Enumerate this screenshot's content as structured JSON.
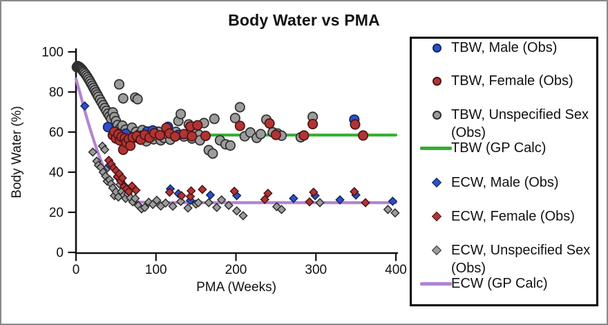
{
  "figure": {
    "title": "Body Water vs PMA"
  },
  "chart_data": {
    "type": "scatter",
    "title": "Body Water vs PMA",
    "xlabel": "PMA (Weeks)",
    "ylabel": "Body Water (%)",
    "xlim": [
      0,
      400
    ],
    "ylim": [
      0,
      100
    ],
    "x_ticks": [
      0,
      100,
      200,
      300,
      400
    ],
    "y_ticks": [
      0,
      20,
      40,
      60,
      80,
      100
    ],
    "grid": false,
    "legend_position": "right",
    "tbw_plateau_pct": 58.5,
    "ecw_plateau_pct": 24.8,
    "series": [
      {
        "name": "TBW, Male (Obs)",
        "type": "scatter",
        "marker": "circle",
        "color": "#2b50c8",
        "edge": "#13265e",
        "points": [
          [
            40,
            62.5
          ],
          [
            62,
            59.2
          ],
          [
            82,
            58.2
          ],
          [
            89,
            60.3
          ],
          [
            96,
            60.8
          ],
          [
            115,
            62.6
          ],
          [
            128,
            58.6
          ],
          [
            348,
            66.2
          ]
        ]
      },
      {
        "name": "TBW, Female (Obs)",
        "type": "scatter",
        "marker": "circle",
        "color": "#b13434",
        "edge": "#4f1414",
        "points": [
          [
            46,
            58.5
          ],
          [
            48,
            60.2
          ],
          [
            50,
            56.8
          ],
          [
            53,
            58.8
          ],
          [
            55,
            55.8
          ],
          [
            57,
            57.6
          ],
          [
            59,
            51.2
          ],
          [
            61,
            56.9
          ],
          [
            63,
            54.8
          ],
          [
            66,
            56.5
          ],
          [
            68,
            53.2
          ],
          [
            71,
            57.4
          ],
          [
            76,
            58.0
          ],
          [
            81,
            56.2
          ],
          [
            86,
            58.6
          ],
          [
            92,
            57.2
          ],
          [
            98,
            59.4
          ],
          [
            105,
            58.4
          ],
          [
            113,
            62.1
          ],
          [
            117,
            59.3
          ],
          [
            124,
            57.8
          ],
          [
            135,
            59.0
          ],
          [
            143,
            62.8
          ],
          [
            145,
            57.9
          ],
          [
            152,
            63.4
          ],
          [
            162,
            58.1
          ],
          [
            205,
            63.1
          ],
          [
            242,
            64.3
          ],
          [
            250,
            58.6
          ],
          [
            285,
            58.3
          ],
          [
            296,
            64.0
          ],
          [
            349,
            63.8
          ],
          [
            359,
            58.3
          ]
        ]
      },
      {
        "name": "TBW, Unspecified Sex (Obs)",
        "type": "scatter",
        "marker": "circle",
        "color": "#9c9c9c",
        "edge": "#2e2e2e",
        "points": [
          [
            1,
            92.4
          ],
          [
            2,
            92.9
          ],
          [
            3,
            92.7
          ],
          [
            4,
            92.5
          ],
          [
            5,
            92.2
          ],
          [
            6,
            91.8
          ],
          [
            7,
            91.4
          ],
          [
            8,
            90.9
          ],
          [
            9,
            90.4
          ],
          [
            10,
            89.8
          ],
          [
            11.5,
            89.1
          ],
          [
            13,
            88.2
          ],
          [
            14.5,
            87.3
          ],
          [
            16,
            86.3
          ],
          [
            17.5,
            85.3
          ],
          [
            19,
            84.2
          ],
          [
            20.5,
            83.1
          ],
          [
            22,
            82.0
          ],
          [
            23.5,
            80.9
          ],
          [
            25,
            79.8
          ],
          [
            26.5,
            78.7
          ],
          [
            28,
            77.6
          ],
          [
            30,
            76.2
          ],
          [
            32,
            74.8
          ],
          [
            34,
            73.4
          ],
          [
            36,
            72.0
          ],
          [
            38,
            70.6
          ],
          [
            40,
            69.2
          ],
          [
            42,
            67.9
          ],
          [
            44,
            66.6
          ],
          [
            54,
            83.8
          ],
          [
            59,
            76.8
          ],
          [
            74,
            77.2
          ],
          [
            77,
            76.4
          ],
          [
            46,
            69.8
          ],
          [
            48,
            67.5
          ],
          [
            50,
            65.5
          ],
          [
            52,
            63.5
          ],
          [
            55,
            61.8
          ],
          [
            57,
            60.2
          ],
          [
            58,
            63.2
          ],
          [
            60,
            58.4
          ],
          [
            62,
            61.2
          ],
          [
            64,
            57.2
          ],
          [
            66,
            59.6
          ],
          [
            68,
            55.8
          ],
          [
            70,
            62.2
          ],
          [
            73,
            58.3
          ],
          [
            75,
            60.1
          ],
          [
            78,
            56.9
          ],
          [
            80,
            59.2
          ],
          [
            83,
            61.0
          ],
          [
            86,
            58.0
          ],
          [
            88,
            55.4
          ],
          [
            91,
            57.3
          ],
          [
            94,
            59.1
          ],
          [
            97,
            56.4
          ],
          [
            100,
            58.3
          ],
          [
            103,
            60.2
          ],
          [
            106,
            55.9
          ],
          [
            110,
            57.1
          ],
          [
            114,
            59.0
          ],
          [
            118,
            56.2
          ],
          [
            125,
            60.1
          ],
          [
            128,
            65.5
          ],
          [
            131,
            69.0
          ],
          [
            135,
            57.8
          ],
          [
            141,
            63.8
          ],
          [
            145,
            56.8
          ],
          [
            150,
            59.2
          ],
          [
            154,
            58.6
          ],
          [
            155,
            55.9
          ],
          [
            160,
            64.5
          ],
          [
            166,
            51.0
          ],
          [
            171,
            49.3
          ],
          [
            173,
            66.6
          ],
          [
            180,
            55.9
          ],
          [
            187,
            53.9
          ],
          [
            193,
            53.3
          ],
          [
            199,
            67.0
          ],
          [
            205,
            72.4
          ],
          [
            211,
            57.9
          ],
          [
            218,
            59.8
          ],
          [
            226,
            57.1
          ],
          [
            231,
            59.0
          ],
          [
            238,
            66.2
          ],
          [
            246,
            59.9
          ],
          [
            252,
            59.3
          ],
          [
            257,
            58.2
          ],
          [
            281,
            57.4
          ],
          [
            296,
            67.6
          ]
        ]
      },
      {
        "name": "TBW (GP Calc)",
        "type": "line",
        "marker": "line",
        "color": "#2fae2f",
        "edge": "",
        "points": [
          [
            70,
            59.7
          ],
          [
            85,
            58.9
          ],
          [
            100,
            58.5
          ],
          [
            150,
            58.5
          ],
          [
            250,
            58.5
          ],
          [
            400,
            58.5
          ]
        ]
      },
      {
        "name": "ECW, Male (Obs)",
        "type": "scatter",
        "marker": "diamond",
        "color": "#2b50c8",
        "edge": "#13265e",
        "points": [
          [
            11,
            73.0
          ],
          [
            42,
            43.5
          ],
          [
            52,
            37.5
          ],
          [
            61,
            33.0
          ],
          [
            118,
            31.7
          ],
          [
            128,
            29.3
          ],
          [
            143,
            25.9
          ],
          [
            168,
            28.6
          ],
          [
            201,
            28.3
          ],
          [
            272,
            26.9
          ],
          [
            299,
            28.3
          ],
          [
            330,
            26.2
          ],
          [
            350,
            28.6
          ],
          [
            396,
            25.5
          ]
        ]
      },
      {
        "name": "ECW, Female (Obs)",
        "type": "scatter",
        "marker": "diamond",
        "color": "#b13434",
        "edge": "#4f1414",
        "points": [
          [
            41,
            45.9
          ],
          [
            44,
            44.0
          ],
          [
            47,
            42.1
          ],
          [
            50,
            40.7
          ],
          [
            52,
            37.9
          ],
          [
            54,
            39.2
          ],
          [
            56,
            35.5
          ],
          [
            58,
            37.1
          ],
          [
            60,
            32.8
          ],
          [
            63,
            31.7
          ],
          [
            66,
            30.3
          ],
          [
            70,
            33.1
          ],
          [
            75,
            31.0
          ],
          [
            117,
            30.0
          ],
          [
            132,
            28.3
          ],
          [
            143,
            27.9
          ],
          [
            144,
            30.7
          ],
          [
            158,
            31.4
          ],
          [
            198,
            30.5
          ],
          [
            236,
            26.4
          ],
          [
            240,
            29.5
          ],
          [
            292,
            25.2
          ],
          [
            297,
            30.0
          ],
          [
            348,
            30.3
          ],
          [
            362,
            24.8
          ]
        ]
      },
      {
        "name": "ECW, Unspecified Sex (Obs)",
        "type": "scatter",
        "marker": "diamond",
        "color": "#9c9c9c",
        "edge": "#2e2e2e",
        "points": [
          [
            21,
            50.0
          ],
          [
            26,
            45.5
          ],
          [
            28,
            43.5
          ],
          [
            31,
            42.4
          ],
          [
            33,
            53.0
          ],
          [
            34,
            40.0
          ],
          [
            36,
            51.2
          ],
          [
            37,
            38.0
          ],
          [
            39,
            35.5
          ],
          [
            40,
            42.4
          ],
          [
            42,
            36.2
          ],
          [
            44,
            34.1
          ],
          [
            46,
            32.1
          ],
          [
            48,
            28.3
          ],
          [
            50,
            30.2
          ],
          [
            53,
            27.6
          ],
          [
            55,
            33.8
          ],
          [
            57,
            30.3
          ],
          [
            60,
            28.6
          ],
          [
            62,
            26.9
          ],
          [
            65,
            29.1
          ],
          [
            68,
            27.2
          ],
          [
            71,
            25.2
          ],
          [
            74,
            26.9
          ],
          [
            78,
            23.4
          ],
          [
            82,
            21.7
          ],
          [
            86,
            22.4
          ],
          [
            91,
            25.0
          ],
          [
            96,
            23.9
          ],
          [
            101,
            26.0
          ],
          [
            106,
            23.1
          ],
          [
            112,
            24.6
          ],
          [
            121,
            23.0
          ],
          [
            131,
            25.4
          ],
          [
            140,
            22.1
          ],
          [
            150,
            24.1
          ],
          [
            153,
            24.8
          ],
          [
            166,
            24.8
          ],
          [
            176,
            22.4
          ],
          [
            182,
            26.2
          ],
          [
            191,
            23.4
          ],
          [
            201,
            20.7
          ],
          [
            209,
            18.3
          ],
          [
            251,
            22.8
          ],
          [
            257,
            21.4
          ],
          [
            305,
            24.8
          ],
          [
            390,
            21.4
          ],
          [
            399,
            19.7
          ]
        ]
      },
      {
        "name": "ECW (GP Calc)",
        "type": "line",
        "marker": "line",
        "color": "#b285d2",
        "edge": "",
        "points": [
          [
            0,
            86.5
          ],
          [
            5,
            79.5
          ],
          [
            10,
            72.0
          ],
          [
            15,
            65.0
          ],
          [
            20,
            58.5
          ],
          [
            25,
            52.5
          ],
          [
            30,
            47.0
          ],
          [
            35,
            42.0
          ],
          [
            40,
            37.8
          ],
          [
            45,
            34.3
          ],
          [
            50,
            31.5
          ],
          [
            55,
            29.3
          ],
          [
            60,
            27.7
          ],
          [
            65,
            26.6
          ],
          [
            70,
            25.8
          ],
          [
            80,
            25.1
          ],
          [
            90,
            24.9
          ],
          [
            100,
            24.8
          ],
          [
            200,
            24.8
          ],
          [
            300,
            24.8
          ],
          [
            400,
            24.8
          ]
        ]
      }
    ]
  },
  "legend": {
    "items": [
      {
        "label": "TBW, Male (Obs)",
        "label2": "",
        "marker": "circle",
        "color": "#2b50c8",
        "edge": "#13265e"
      },
      {
        "label": "TBW, Female (Obs)",
        "label2": "",
        "marker": "circle",
        "color": "#b13434",
        "edge": "#4f1414"
      },
      {
        "label": "TBW, Unspecified Sex",
        "label2": "(Obs)",
        "marker": "circle",
        "color": "#9c9c9c",
        "edge": "#2e2e2e"
      },
      {
        "label": "TBW (GP Calc)",
        "label2": "",
        "marker": "line",
        "color": "#2fae2f",
        "edge": ""
      },
      {
        "label": "ECW, Male (Obs)",
        "label2": "",
        "marker": "diamond",
        "color": "#2b50c8",
        "edge": "#13265e"
      },
      {
        "label": "ECW, Female (Obs)",
        "label2": "",
        "marker": "diamond",
        "color": "#b13434",
        "edge": "#4f1414"
      },
      {
        "label": "ECW, Unspecified Sex",
        "label2": "(Obs)",
        "marker": "diamond",
        "color": "#9c9c9c",
        "edge": "#2e2e2e"
      },
      {
        "label": "ECW (GP Calc)",
        "label2": "",
        "marker": "line",
        "color": "#b285d2",
        "edge": ""
      }
    ]
  }
}
